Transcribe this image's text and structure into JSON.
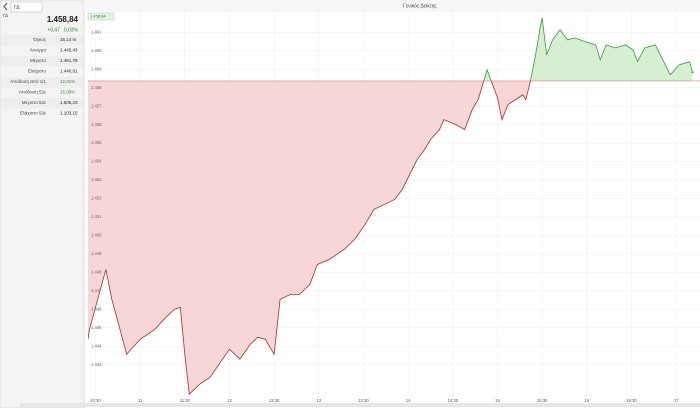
{
  "quote": {
    "symbol_input": "ΓΔ",
    "symbol": "ΓΔ",
    "price": "1.458,84",
    "change": "+0,47",
    "change_pct": "0,03%",
    "stats": [
      {
        "label": "Όγκος",
        "value": "15,14 m"
      },
      {
        "label": "Άνοιγμα",
        "value": "1.445,43"
      },
      {
        "label": "Μέγιστο",
        "value": "1.461,78"
      },
      {
        "label": "Ελάχιστο",
        "value": "1.440,91"
      },
      {
        "label": "Απόδοση από 1/1",
        "value": "12,01%"
      },
      {
        "label": "Απόδοση 52ε",
        "value": "15,09%"
      },
      {
        "label": "Μέγιστο 52ε",
        "value": "1.505,23"
      },
      {
        "label": "Ελάχιστο 52ε",
        "value": "1.103,15"
      }
    ]
  },
  "chart_data": {
    "type": "line",
    "title": "Γενικός Δείκτης",
    "badge": "1.458,84",
    "reference": 1458.37,
    "color_up": "#3a9a3a",
    "color_down": "#b02a2a",
    "fill_up": "#d6efd3",
    "fill_down": "#f6d6d6",
    "grid": true,
    "x": [
      625,
      626,
      637,
      641,
      651,
      660,
      670,
      676,
      683,
      687,
      690,
      693,
      700,
      707,
      713,
      720,
      727,
      734,
      739,
      744,
      750,
      754,
      761,
      767,
      774,
      779,
      787,
      797,
      804,
      811,
      817,
      824,
      831,
      836,
      841,
      846,
      851,
      855,
      861,
      864,
      872,
      878,
      883,
      887,
      890,
      893,
      896,
      900,
      903,
      907,
      912,
      917,
      919,
      922,
      925,
      929,
      930,
      933,
      937,
      942,
      947,
      952,
      959,
      966,
      969,
      973,
      979,
      986,
      991,
      994,
      999,
      1006,
      1011,
      1016,
      1022,
      1029,
      1031
    ],
    "series": [
      {
        "name": "ΓΔ",
        "values": [
          1444.38,
          1444.92,
          1448.16,
          1446.54,
          1443.57,
          1444.38,
          1444.92,
          1445.46,
          1446.0,
          1446.11,
          1443.57,
          1441.41,
          1441.95,
          1442.32,
          1443.03,
          1443.84,
          1443.3,
          1444.11,
          1444.49,
          1444.38,
          1443.57,
          1446.54,
          1446.81,
          1446.81,
          1447.35,
          1448.43,
          1448.7,
          1449.24,
          1449.78,
          1450.59,
          1451.41,
          1451.68,
          1451.95,
          1452.49,
          1453.3,
          1454.11,
          1454.65,
          1455.19,
          1455.73,
          1456.27,
          1456.0,
          1455.73,
          1456.81,
          1457.35,
          1458.16,
          1458.97,
          1458.32,
          1457.46,
          1456.27,
          1457.08,
          1457.35,
          1457.62,
          1457.35,
          1458.32,
          1459.51,
          1461.41,
          1461.78,
          1459.78,
          1460.59,
          1461.14,
          1460.59,
          1460.7,
          1460.49,
          1460.32,
          1459.51,
          1460.32,
          1460.16,
          1460.32,
          1460.05,
          1459.41,
          1460.16,
          1460.32,
          1459.51,
          1458.7,
          1459.24,
          1459.41,
          1458.84
        ]
      }
    ],
    "xlim": [
      625,
      1036
    ],
    "ylim": [
      1441.2,
      1462.1
    ],
    "xticks": [
      {
        "value": 630,
        "label": "10:30"
      },
      {
        "value": 660,
        "label": "11"
      },
      {
        "value": 690,
        "label": "11:30"
      },
      {
        "value": 720,
        "label": "12"
      },
      {
        "value": 750,
        "label": "12:30"
      },
      {
        "value": 780,
        "label": "13"
      },
      {
        "value": 810,
        "label": "13:30"
      },
      {
        "value": 840,
        "label": "14"
      },
      {
        "value": 870,
        "label": "14:30"
      },
      {
        "value": 900,
        "label": "15"
      },
      {
        "value": 930,
        "label": "15:30"
      },
      {
        "value": 960,
        "label": "16"
      },
      {
        "value": 990,
        "label": "16:30"
      },
      {
        "value": 1020,
        "label": "17"
      }
    ],
    "yticks": [
      {
        "value": 1443,
        "label": "1.443"
      },
      {
        "value": 1444,
        "label": "1.444"
      },
      {
        "value": 1445,
        "label": "1.445"
      },
      {
        "value": 1446,
        "label": "1.446"
      },
      {
        "value": 1447,
        "label": "1.447"
      },
      {
        "value": 1448,
        "label": "1.448"
      },
      {
        "value": 1449,
        "label": "1.449"
      },
      {
        "value": 1450,
        "label": "1.450"
      },
      {
        "value": 1451,
        "label": "1.451"
      },
      {
        "value": 1452,
        "label": "1.452"
      },
      {
        "value": 1453,
        "label": "1.453"
      },
      {
        "value": 1454,
        "label": "1.454"
      },
      {
        "value": 1455,
        "label": "1.455"
      },
      {
        "value": 1456,
        "label": "1.456"
      },
      {
        "value": 1457,
        "label": "1.457"
      },
      {
        "value": 1458,
        "label": "1.458"
      },
      {
        "value": 1459,
        "label": "1.459"
      },
      {
        "value": 1460,
        "label": "1.460"
      },
      {
        "value": 1461,
        "label": "1.461"
      }
    ]
  }
}
